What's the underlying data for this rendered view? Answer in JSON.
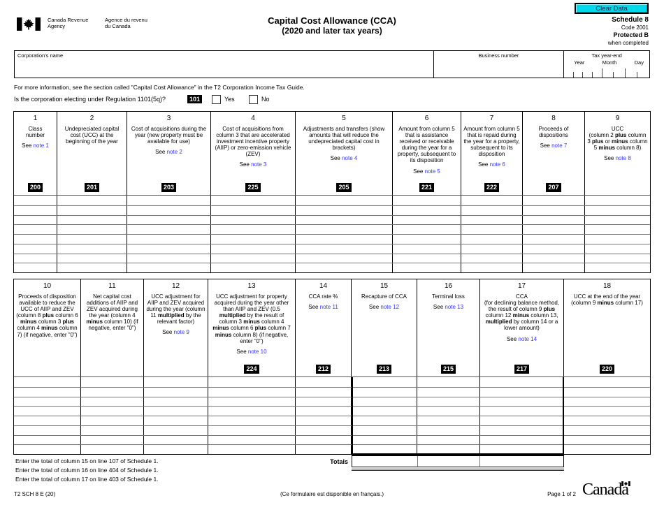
{
  "header": {
    "logo_en_line1": "Canada Revenue",
    "logo_en_line2": "Agency",
    "logo_fr_line1": "Agence du revenu",
    "logo_fr_line2": "du Canada",
    "title_line1": "Capital Cost Allowance (CCA)",
    "title_line2": "(2020 and later tax years)",
    "clear_data": "Clear Data",
    "schedule": "Schedule 8",
    "code": "Code 2001",
    "protected": "Protected B",
    "protected_sub": "when completed"
  },
  "id_section": {
    "corporation_name": "Corporation's name",
    "business_number": "Business number",
    "tax_year_end": "Tax year-end",
    "year": "Year",
    "month": "Month",
    "day": "Day"
  },
  "intro": "For more information, see the section called \"Capital Cost Allowance\" in the T2 Corporation Income Tax Guide.",
  "question": {
    "text": "Is the corporation electing under Regulation 1101(5q)?",
    "code": "101",
    "yes": "Yes",
    "no": "No"
  },
  "see_label": "See",
  "table1": {
    "rows": 8,
    "columns": [
      {
        "num": "1",
        "desc": "Class\nnumber",
        "note": "note 1",
        "code": "200"
      },
      {
        "num": "2",
        "desc": "Undepreciated capital cost (UCC) at the beginning of the year",
        "code": "201"
      },
      {
        "num": "3",
        "desc": "Cost of acquisitions during the year (new property must be available for use)",
        "note": "note 2",
        "code": "203"
      },
      {
        "num": "4",
        "desc": "Cost of acquisitions from column 3 that are accelerated investment incentive property (AIIP) or zero-emission vehicle (ZEV)",
        "note": "note 3",
        "code": "225"
      },
      {
        "num": "5",
        "desc": "Adjustments and transfers (show amounts that will reduce the undepreciated capital cost in brackets)",
        "note": "note 4",
        "code": "205"
      },
      {
        "num": "6",
        "desc": "Amount from column 5 that is assistance received or receivable during the year for a property, subsequent to its disposition",
        "note": "note 5",
        "code": "221"
      },
      {
        "num": "7",
        "desc": "Amount from column 5 that is repaid during the year for a property, subsequent to its disposition",
        "note": "note 6",
        "code": "222"
      },
      {
        "num": "8",
        "desc": "Proceeds of dispositions",
        "note": "note 7",
        "code": "207"
      },
      {
        "num": "9",
        "desc": "UCC\n(column 2 **plus** column 3 **plus** or **minus** column 5 **minus** column 8)",
        "note": "note 8"
      }
    ]
  },
  "table2": {
    "rows": 8,
    "columns": [
      {
        "num": "10",
        "desc": "Proceeds of disposition available to reduce the UCC of AIIP and ZEV (column 8 **plus** column 6 **minus** column 3 **plus** column 4 **minus** column 7) (if negative, enter \"0\")"
      },
      {
        "num": "11",
        "desc": "Net capital cost additions of AIIP and ZEV acquired during the year (column 4 **minus** column 10) (if negative, enter \"0\")"
      },
      {
        "num": "12",
        "desc": "UCC adjustment for AIIP and ZEV acquired during the year (column 11 **multiplied** by the relevant factor)",
        "note": "note 9"
      },
      {
        "num": "13",
        "desc": "UCC adjustment for property acquired during the year other than AIIP and ZEV (0.5 **multiplied** by the result of column 3 **minus** column 4 **minus** column 6 **plus** column 7 **minus** column 8) (if negative, enter \"0\")",
        "note": "note 10",
        "code": "224"
      },
      {
        "num": "14",
        "desc": "CCA rate %",
        "note": "note 11",
        "code": "212"
      },
      {
        "num": "15",
        "desc": "Recapture of CCA",
        "note": "note 12",
        "code": "213"
      },
      {
        "num": "16",
        "desc": "Terminal loss",
        "note": "note 13",
        "code": "215"
      },
      {
        "num": "17",
        "desc": "CCA\n(for declining balance method, the result of column 9 **plus** column 12 **minus** column 13, **multiplied** by column 14 or a lower amount)",
        "note": "note 14",
        "code": "217"
      },
      {
        "num": "18",
        "desc": "UCC at the end of the year (column 9 **minus** column 17)",
        "code": "220"
      }
    ]
  },
  "totals": {
    "label": "Totals"
  },
  "instructions": [
    "Enter the total of column 15 on line 107 of Schedule 1.",
    "Enter the total of column 16 on line 404 of Schedule 1.",
    "Enter the total of column 17 on line 403 of Schedule 1."
  ],
  "footer": {
    "form_code": "T2 SCH 8 E (20)",
    "french_note": "(Ce formulaire est disponible en français.)",
    "page": "Page 1 of 2",
    "wordmark": "Canada"
  },
  "colors": {
    "link_blue": "#3333ff",
    "clear_data_bg": "#00d9ea",
    "badge_bg": "#000000"
  }
}
